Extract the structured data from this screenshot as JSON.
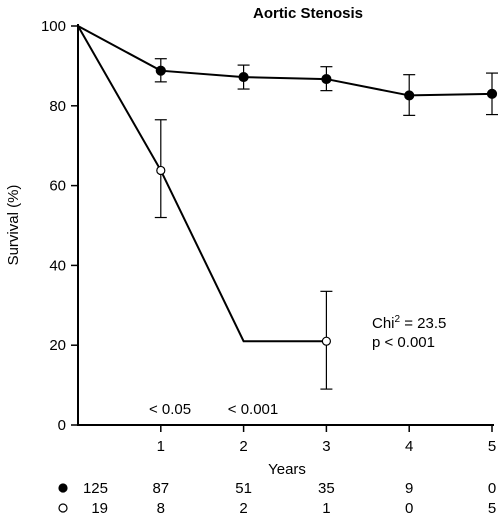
{
  "chart_data": {
    "type": "line",
    "title": "Aortic Stenosis",
    "xlabel": "Years",
    "ylabel": "Survival (%)",
    "xlim": [
      0,
      5
    ],
    "ylim": [
      0,
      100
    ],
    "xticks": [
      1,
      2,
      3,
      4,
      5
    ],
    "yticks": [
      0,
      20,
      40,
      60,
      80,
      100
    ],
    "grid": false,
    "series": [
      {
        "marker": "filled",
        "step": false,
        "x": [
          0,
          1,
          2,
          3,
          4,
          5
        ],
        "y": [
          100,
          88.8,
          87.2,
          86.7,
          82.6,
          83
        ],
        "error_bars": [
          {
            "x": 1,
            "low": 86,
            "high": 91.8
          },
          {
            "x": 2,
            "low": 84.2,
            "high": 90.2
          },
          {
            "x": 3,
            "low": 83.8,
            "high": 89.8
          },
          {
            "x": 4,
            "low": 77.6,
            "high": 87.8
          },
          {
            "x": 5,
            "low": 77.8,
            "high": 88.2
          }
        ],
        "markers_at": [
          1,
          2,
          3,
          4,
          5
        ]
      },
      {
        "marker": "open",
        "x": [
          0,
          1,
          2,
          3
        ],
        "y": [
          100,
          63.8,
          21,
          21
        ],
        "error_bars": [
          {
            "x": 1,
            "low": 52,
            "high": 76.5
          },
          {
            "x": 3,
            "low": 9,
            "high": 33.5
          }
        ],
        "markers_at": [
          1,
          3
        ]
      }
    ],
    "annotations": {
      "p_values": [
        {
          "x": 1,
          "text": "< 0.05"
        },
        {
          "x": 2,
          "text": "< 0.001"
        }
      ],
      "chi_prefix": "Chi",
      "chi_sup": "2",
      "chi_value": " = 23.5",
      "p_line": "p < 0.001"
    },
    "numbers_at_risk": [
      {
        "marker": "filled",
        "values": [
          "125",
          "87",
          "51",
          "35",
          "9",
          "0"
        ]
      },
      {
        "marker": "open",
        "values": [
          "19",
          "8",
          "2",
          "1",
          "0",
          "5"
        ]
      }
    ]
  }
}
